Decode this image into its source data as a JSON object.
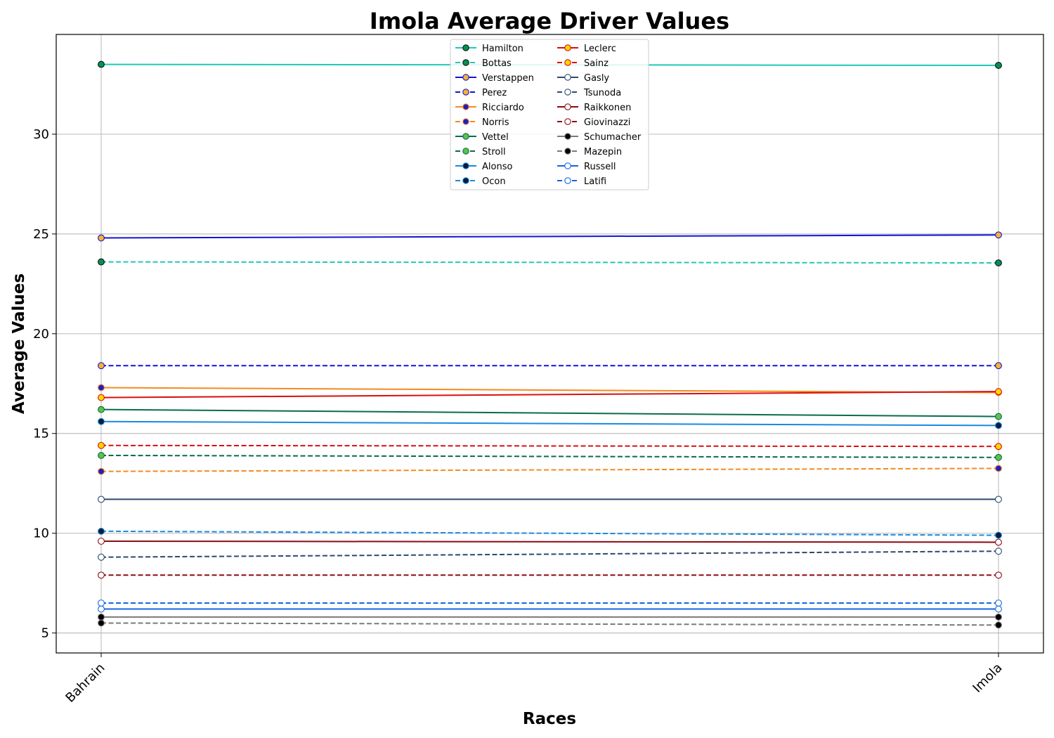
{
  "chart_data": {
    "type": "line",
    "title": "Imola Average Driver Values",
    "xlabel": "Races",
    "ylabel": "Average Values",
    "categories": [
      "Bahrain",
      "Imola"
    ],
    "ylim": [
      4,
      35
    ],
    "yticks": [
      5,
      10,
      15,
      20,
      25,
      30
    ],
    "grid": true,
    "legend_position": "top-center",
    "legend_columns": 2,
    "series": [
      {
        "name": "Hamilton",
        "values": [
          33.5,
          33.45
        ],
        "color": "#20c9b5",
        "marker_face": "#009155",
        "marker_edge": "#111111",
        "dashed": false
      },
      {
        "name": "Bottas",
        "values": [
          23.6,
          23.55
        ],
        "color": "#20c9b5",
        "marker_face": "#009155",
        "marker_edge": "#111111",
        "dashed": true
      },
      {
        "name": "Verstappen",
        "values": [
          24.8,
          24.95
        ],
        "color": "#1414d6",
        "marker_face": "#f7b234",
        "marker_edge": "#1414d6",
        "dashed": false
      },
      {
        "name": "Perez",
        "values": [
          18.4,
          18.4
        ],
        "color": "#1414d6",
        "marker_face": "#f7b234",
        "marker_edge": "#1414d6",
        "dashed": true
      },
      {
        "name": "Ricciardo",
        "values": [
          17.3,
          17.05
        ],
        "color": "#f58a1f",
        "marker_face": "#1e1ec8",
        "marker_edge": "#f58a1f",
        "dashed": false
      },
      {
        "name": "Norris",
        "values": [
          13.1,
          13.25
        ],
        "color": "#f58a1f",
        "marker_face": "#1e1ec8",
        "marker_edge": "#f58a1f",
        "dashed": true
      },
      {
        "name": "Vettel",
        "values": [
          16.2,
          15.85
        ],
        "color": "#0a6b4f",
        "marker_face": "#5cc24a",
        "marker_edge": "#0a6b4f",
        "dashed": false
      },
      {
        "name": "Stroll",
        "values": [
          13.9,
          13.8
        ],
        "color": "#0a6b4f",
        "marker_face": "#5cc24a",
        "marker_edge": "#0a6b4f",
        "dashed": true
      },
      {
        "name": "Alonso",
        "values": [
          15.6,
          15.4
        ],
        "color": "#1a8ae0",
        "marker_face": "#0b1c3a",
        "marker_edge": "#1a8ae0",
        "dashed": false
      },
      {
        "name": "Ocon",
        "values": [
          10.1,
          9.9
        ],
        "color": "#1a8ae0",
        "marker_face": "#0b1c3a",
        "marker_edge": "#1a8ae0",
        "dashed": true
      },
      {
        "name": "Leclerc",
        "values": [
          16.8,
          17.1
        ],
        "color": "#d90f0f",
        "marker_face": "#ffd500",
        "marker_edge": "#d90f0f",
        "dashed": false
      },
      {
        "name": "Sainz",
        "values": [
          14.4,
          14.35
        ],
        "color": "#d90f0f",
        "marker_face": "#ffd500",
        "marker_edge": "#d90f0f",
        "dashed": true
      },
      {
        "name": "Gasly",
        "values": [
          11.7,
          11.7
        ],
        "color": "#2b4a6e",
        "marker_face": "#ffffff",
        "marker_edge": "#2b4a6e",
        "dashed": false
      },
      {
        "name": "Tsunoda",
        "values": [
          8.8,
          9.1
        ],
        "color": "#2b4a6e",
        "marker_face": "#ffffff",
        "marker_edge": "#2b4a6e",
        "dashed": true
      },
      {
        "name": "Raikkonen",
        "values": [
          9.6,
          9.55
        ],
        "color": "#8b0a14",
        "marker_face": "#ffffff",
        "marker_edge": "#8b0a14",
        "dashed": false
      },
      {
        "name": "Giovinazzi",
        "values": [
          7.9,
          7.9
        ],
        "color": "#8b0a14",
        "marker_face": "#ffffff",
        "marker_edge": "#8b0a14",
        "dashed": true
      },
      {
        "name": "Schumacher",
        "values": [
          5.8,
          5.8
        ],
        "color": "#7a7a7a",
        "marker_face": "#000000",
        "marker_edge": "#7a7a7a",
        "dashed": false
      },
      {
        "name": "Mazepin",
        "values": [
          5.5,
          5.4
        ],
        "color": "#7a7a7a",
        "marker_face": "#000000",
        "marker_edge": "#7a7a7a",
        "dashed": true
      },
      {
        "name": "Russell",
        "values": [
          6.2,
          6.2
        ],
        "color": "#1565e0",
        "marker_face": "#ffffff",
        "marker_edge": "#1565e0",
        "dashed": false
      },
      {
        "name": "Latifi",
        "values": [
          6.5,
          6.5
        ],
        "color": "#1565e0",
        "marker_face": "#ffffff",
        "marker_edge": "#1565e0",
        "dashed": true
      }
    ]
  }
}
